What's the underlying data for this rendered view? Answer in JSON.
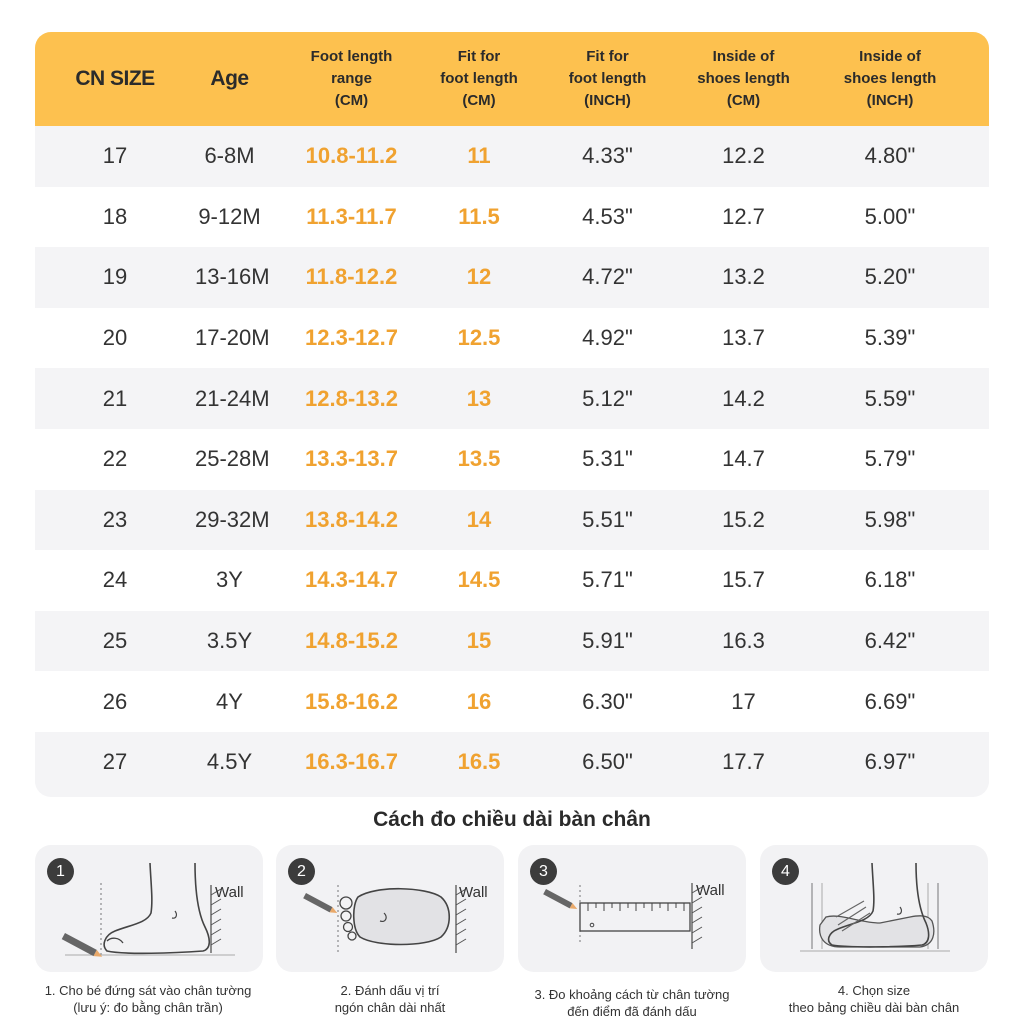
{
  "table": {
    "headers": [
      {
        "lines": [
          "CN SIZE"
        ],
        "big": true
      },
      {
        "lines": [
          "Age"
        ],
        "big": true
      },
      {
        "lines": [
          "Foot length",
          "range",
          "(CM)"
        ],
        "big": false
      },
      {
        "lines": [
          "Fit for",
          "foot length",
          "(CM)"
        ],
        "big": false
      },
      {
        "lines": [
          "Fit for",
          "foot length",
          "(INCH)"
        ],
        "big": false
      },
      {
        "lines": [
          "Inside of",
          "shoes length",
          "(CM)"
        ],
        "big": false
      },
      {
        "lines": [
          "Inside of",
          "shoes length",
          "(INCH)"
        ],
        "big": false
      }
    ],
    "rows": [
      [
        "17",
        "6-8M",
        "10.8-11.2",
        "11",
        "4.33\"",
        "12.2",
        "4.80\""
      ],
      [
        "18",
        "9-12M",
        "11.3-11.7",
        "11.5",
        "4.53\"",
        "12.7",
        "5.00\""
      ],
      [
        "19",
        "13-16M",
        "11.8-12.2",
        "12",
        "4.72\"",
        "13.2",
        "5.20\""
      ],
      [
        "20",
        "17-20M",
        "12.3-12.7",
        "12.5",
        "4.92\"",
        "13.7",
        "5.39\""
      ],
      [
        "21",
        "21-24M",
        "12.8-13.2",
        "13",
        "5.12\"",
        "14.2",
        "5.59\""
      ],
      [
        "22",
        "25-28M",
        "13.3-13.7",
        "13.5",
        "5.31\"",
        "14.7",
        "5.79\""
      ],
      [
        "23",
        "29-32M",
        "13.8-14.2",
        "14",
        "5.51\"",
        "15.2",
        "5.98\""
      ],
      [
        "24",
        "3Y",
        "14.3-14.7",
        "14.5",
        "5.71\"",
        "15.7",
        "6.18\""
      ],
      [
        "25",
        "3.5Y",
        "14.8-15.2",
        "15",
        "5.91\"",
        "16.3",
        "6.42\""
      ],
      [
        "26",
        "4Y",
        "15.8-16.2",
        "16",
        "6.30\"",
        "17",
        "6.69\""
      ],
      [
        "27",
        "4.5Y",
        "16.3-16.7",
        "16.5",
        "6.50\"",
        "17.7",
        "6.97\""
      ]
    ],
    "colors": {
      "header_bg": "#fdc14f",
      "highlight_text": "#f0a230"
    }
  },
  "howto": {
    "title": "Cách đo chiều dài bàn chân",
    "wall_label": "Wall",
    "steps": [
      {
        "number": "1",
        "illustration": "foot-side-against-wall-icon",
        "caption": [
          "1. Cho bé đứng sát vào chân tường",
          "(lưu ý: đo bằng chân trần)"
        ]
      },
      {
        "number": "2",
        "illustration": "foot-top-mark-toe-icon",
        "caption": [
          "2. Đánh dấu vị trí",
          "ngón chân dài nhất"
        ]
      },
      {
        "number": "3",
        "illustration": "ruler-measure-icon",
        "caption": [
          "3. Đo khoảng cách từ chân tường",
          "đến điểm đã đánh dấu"
        ]
      },
      {
        "number": "4",
        "illustration": "foot-in-shoe-icon",
        "caption": [
          "4. Chọn size",
          "theo bảng chiều dài bàn chân"
        ]
      }
    ]
  }
}
